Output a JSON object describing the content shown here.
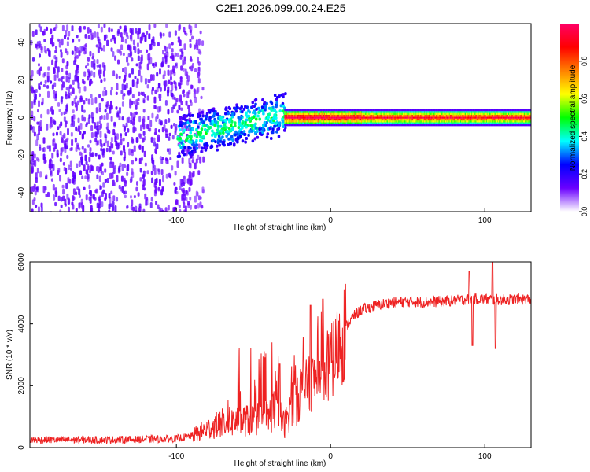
{
  "title": "C2E1.2026.099.00.24.E25",
  "chart_data": [
    {
      "type": "heatmap",
      "name": "spectrogram",
      "xlabel": "Height of straight line (km)",
      "ylabel": "Frequency (Hz)",
      "xlim": [
        -195,
        130
      ],
      "ylim": [
        -50,
        50
      ],
      "xticks": [
        -100,
        0,
        100
      ],
      "yticks": [
        -40,
        -20,
        0,
        20,
        40
      ],
      "colorbar": {
        "label": "Normalized spectral amplitude",
        "range": [
          0,
          1
        ],
        "ticks": [
          0.0,
          0.2,
          0.4,
          0.6,
          0.8
        ],
        "colormap": [
          "#ffffff",
          "#6a00ff",
          "#0000ff",
          "#00ffff",
          "#00ff00",
          "#ffff00",
          "#ff8000",
          "#ff0000",
          "#ff0066"
        ]
      },
      "regions": [
        {
          "description": "noise",
          "x": [
            -195,
            -85
          ],
          "freq_range": [
            -50,
            50
          ],
          "amplitude": 0.05
        },
        {
          "description": "signal onset",
          "x": [
            -100,
            -30
          ],
          "center_freq": [
            -10,
            3
          ],
          "half_width_hz": 10,
          "amplitude": 0.3
        },
        {
          "description": "steady carrier",
          "x": [
            -30,
            130
          ],
          "center_freq": 0,
          "half_width_hz": 3,
          "amplitude": 0.8
        }
      ]
    },
    {
      "type": "line",
      "name": "snr",
      "xlabel": "Height of straight line (km)",
      "ylabel": "SNR (10 * v/v)",
      "xlim": [
        -195,
        130
      ],
      "ylim": [
        0,
        6000
      ],
      "xticks": [
        -100,
        0,
        100
      ],
      "yticks": [
        0,
        2000,
        4000,
        6000
      ],
      "color": "#ee2222",
      "series": [
        {
          "name": "SNR",
          "x": [
            -195,
            -150,
            -120,
            -100,
            -90,
            -80,
            -70,
            -60,
            -50,
            -40,
            -35,
            -30,
            -25,
            -20,
            -15,
            -10,
            -5,
            0,
            5,
            10,
            15,
            20,
            30,
            40,
            50,
            60,
            70,
            80,
            90,
            100,
            110,
            120,
            130
          ],
          "values": [
            250,
            250,
            270,
            290,
            380,
            600,
            800,
            850,
            900,
            1000,
            1400,
            700,
            1500,
            1900,
            2000,
            2200,
            2500,
            2700,
            3300,
            3900,
            4250,
            4450,
            4600,
            4700,
            4720,
            4700,
            4720,
            4750,
            4800,
            4800,
            4780,
            4800,
            4800
          ]
        }
      ],
      "spikes": [
        {
          "x": 90,
          "value": 5700
        },
        {
          "x": 92,
          "value": 3300
        },
        {
          "x": 105,
          "value": 6000
        },
        {
          "x": 107,
          "value": 3200
        },
        {
          "x": -13,
          "value": 4600
        },
        {
          "x": -5,
          "value": 4800
        },
        {
          "x": -33,
          "value": 2700
        }
      ]
    }
  ]
}
